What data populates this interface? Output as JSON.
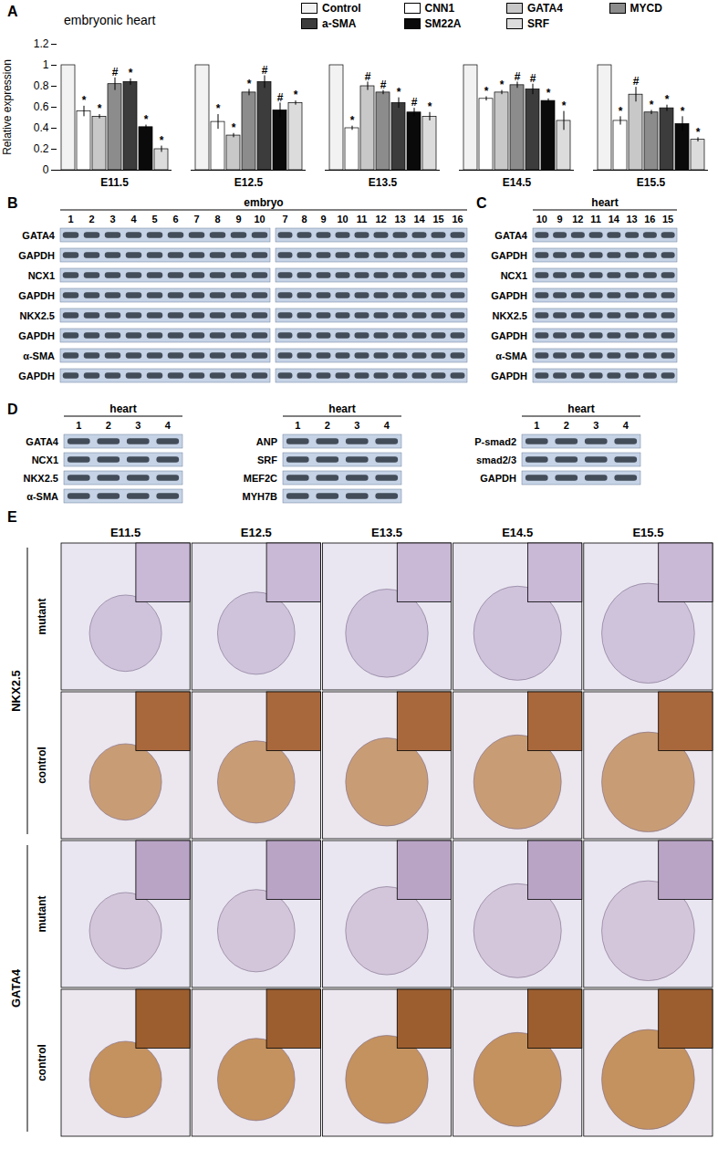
{
  "chart_data": {
    "type": "bar",
    "title": "embryonic heart",
    "y_label": "Relative expression",
    "categories": [
      "E11.5",
      "E12.5",
      "E13.5",
      "E14.5",
      "E15.5"
    ],
    "series": [
      {
        "name": "Control",
        "color": "#f2f2f2",
        "values": [
          1,
          1,
          1,
          1,
          1
        ],
        "errors": [
          null,
          null,
          null,
          null,
          null
        ],
        "annotations": [
          null,
          null,
          null,
          null,
          null
        ]
      },
      {
        "name": "CNN1",
        "color": "#ffffff",
        "values": [
          0.56,
          0.46,
          0.4,
          0.68,
          0.47
        ],
        "errors": [
          0.05,
          0.07,
          0.02,
          0.02,
          0.04
        ],
        "annotations": [
          "*",
          "*",
          "*",
          "*",
          "*"
        ]
      },
      {
        "name": "GATA4",
        "color": "#c8c8c8",
        "values": [
          0.51,
          0.33,
          0.8,
          0.74,
          0.72
        ],
        "errors": [
          0.02,
          0.02,
          0.04,
          0.02,
          0.07
        ],
        "annotations": [
          "*",
          "*",
          "#",
          "*",
          "#"
        ]
      },
      {
        "name": "MYCD",
        "color": "#8c8c8c",
        "values": [
          0.82,
          0.74,
          0.74,
          0.81,
          0.55
        ],
        "errors": [
          0.06,
          0.03,
          0.02,
          0.03,
          0.02
        ],
        "annotations": [
          "#",
          "*",
          "#",
          "#",
          "*"
        ]
      },
      {
        "name": "a-SMA",
        "color": "#3c3c3c",
        "values": [
          0.84,
          0.84,
          0.64,
          0.77,
          0.59
        ],
        "errors": [
          0.03,
          0.06,
          0.05,
          0.05,
          0.03
        ],
        "annotations": [
          "*",
          "#",
          "*",
          "#",
          "*"
        ]
      },
      {
        "name": "SM22A",
        "color": "#0a0a0a",
        "values": [
          0.41,
          0.57,
          0.55,
          0.66,
          0.44
        ],
        "errors": [
          0.02,
          0.07,
          0.04,
          0.02,
          0.07
        ],
        "annotations": [
          "*",
          "#",
          "#",
          "*",
          "*"
        ]
      },
      {
        "name": "SRF",
        "color": "#dcdcdc",
        "values": [
          0.2,
          0.64,
          0.51,
          0.47,
          0.29
        ],
        "errors": [
          0.03,
          0.02,
          0.04,
          0.09,
          0.02
        ],
        "annotations": [
          "*",
          "*",
          "*",
          "*",
          "*"
        ]
      }
    ],
    "ylim": [
      0,
      1.2
    ],
    "yticks": [
      0,
      0.2,
      0.4,
      0.6,
      0.8,
      1,
      1.2
    ],
    "grid": false,
    "legend": "top"
  },
  "panels": {
    "A": {
      "label": "A"
    },
    "B": {
      "label": "B",
      "title": "embryo",
      "blots": [
        {
          "lanes": [
            "1",
            "2",
            "3",
            "4",
            "5",
            "6",
            "7",
            "8",
            "9",
            "10"
          ]
        },
        {
          "lanes": [
            "7",
            "8",
            "9",
            "10",
            "11",
            "12",
            "13",
            "14",
            "15",
            "16"
          ]
        }
      ],
      "rows": [
        "GATA4",
        "GAPDH",
        "NCX1",
        "GAPDH",
        "NKX2.5",
        "GAPDH",
        "α-SMA",
        "GAPDH"
      ]
    },
    "C": {
      "label": "C",
      "title": "heart",
      "lanes": [
        "10",
        "9",
        "12",
        "11",
        "14",
        "13",
        "16",
        "15"
      ],
      "rows": [
        "GATA4",
        "GAPDH",
        "NCX1",
        "GAPDH",
        "NKX2.5",
        "GAPDH",
        "α-SMA",
        "GAPDH"
      ]
    },
    "D": {
      "label": "D",
      "blots": [
        {
          "title": "heart",
          "lanes": [
            "1",
            "2",
            "3",
            "4"
          ],
          "rows": [
            "GATA4",
            "NCX1",
            "NKX2.5",
            "α-SMA"
          ]
        },
        {
          "title": "heart",
          "lanes": [
            "1",
            "2",
            "3",
            "4"
          ],
          "rows": [
            "ANP",
            "SRF",
            "MEF2C",
            "MYH7B"
          ]
        },
        {
          "title": "heart",
          "lanes": [
            "1",
            "2",
            "3",
            "4"
          ],
          "rows": [
            "P-smad2",
            "smad2/3",
            "GAPDH"
          ]
        }
      ]
    },
    "E": {
      "label": "E",
      "columns": [
        "E11.5",
        "E12.5",
        "E13.5",
        "E14.5",
        "E15.5"
      ],
      "groups": [
        {
          "name": "NKX2.5",
          "rows": [
            "mutant",
            "control"
          ]
        },
        {
          "name": "GATA4",
          "rows": [
            "mutant",
            "control"
          ]
        }
      ]
    }
  }
}
